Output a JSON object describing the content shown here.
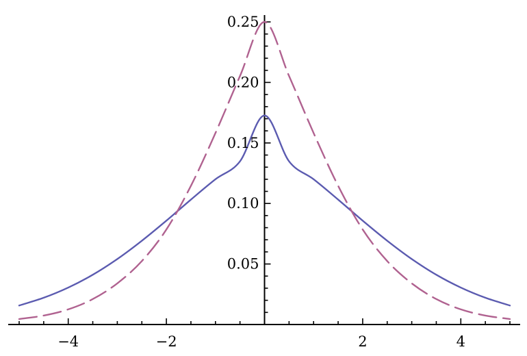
{
  "chart_data": {
    "type": "line",
    "title": "",
    "xlabel": "",
    "ylabel": "",
    "xlim": [
      -5,
      5
    ],
    "ylim": [
      0,
      0.25
    ],
    "grid": false,
    "x_ticks": [
      {
        "value": -4,
        "label": "−4"
      },
      {
        "value": -2,
        "label": "−2"
      },
      {
        "value": 2,
        "label": "2"
      },
      {
        "value": 4,
        "label": "4"
      }
    ],
    "y_ticks": [
      {
        "value": 0.05,
        "label": "0.05"
      },
      {
        "value": 0.1,
        "label": "0.10"
      },
      {
        "value": 0.15,
        "label": "0.15"
      },
      {
        "value": 0.2,
        "label": "0.20"
      },
      {
        "value": 0.25,
        "label": "0.25"
      }
    ],
    "series": [
      {
        "style": "solid",
        "color": "#5b5bb0",
        "x": [
          -5,
          -4.5,
          -4,
          -3.5,
          -3,
          -2.5,
          -2,
          -1.5,
          -1,
          -0.5,
          0,
          0.5,
          1,
          1.5,
          2,
          2.5,
          3,
          3.5,
          4,
          4.5,
          5
        ],
        "y": [
          0.0157,
          0.0221,
          0.0305,
          0.0411,
          0.0541,
          0.0692,
          0.0858,
          0.1032,
          0.12,
          0.1348,
          0.1727,
          0.1348,
          0.12,
          0.1032,
          0.0858,
          0.0692,
          0.0541,
          0.0411,
          0.0305,
          0.0221,
          0.0157
        ]
      },
      {
        "style": "dashed",
        "color": "#b06290",
        "x": [
          -5,
          -4.5,
          -4,
          -3.5,
          -3,
          -2.5,
          -2,
          -1.5,
          -1,
          -0.5,
          0,
          0.5,
          1,
          1.5,
          2,
          2.5,
          3,
          3.5,
          4,
          4.5,
          5
        ],
        "y": [
          0.0045,
          0.0074,
          0.0125,
          0.021,
          0.034,
          0.0524,
          0.0785,
          0.1146,
          0.1582,
          0.2053,
          0.25,
          0.2053,
          0.1582,
          0.1146,
          0.0785,
          0.0524,
          0.034,
          0.021,
          0.0125,
          0.0074,
          0.0045
        ]
      }
    ]
  }
}
